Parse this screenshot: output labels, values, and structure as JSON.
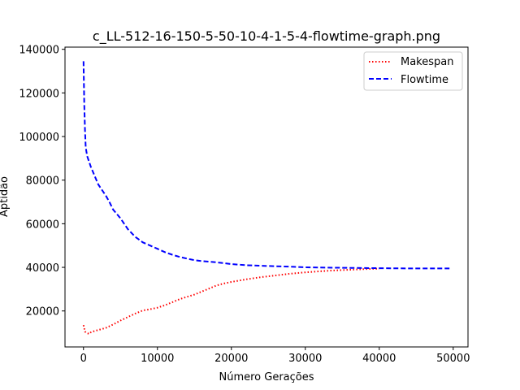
{
  "chart_data": {
    "type": "line",
    "title": "c_LL-512-16-150-5-50-10-4-1-5-4-flowtime-graph.png",
    "xlabel": "Número Gerações",
    "ylabel": "Aptidão",
    "xlim": [
      -2500,
      52000
    ],
    "ylim": [
      3500,
      141000
    ],
    "x_ticks": [
      0,
      10000,
      20000,
      30000,
      40000,
      50000
    ],
    "y_ticks": [
      20000,
      40000,
      60000,
      80000,
      100000,
      120000,
      140000
    ],
    "grid": false,
    "legend_position": "upper right",
    "series": [
      {
        "name": "Makespan",
        "color": "#ff0000",
        "style": "dotted",
        "x": [
          0,
          200,
          500,
          800,
          1000,
          1500,
          2000,
          3000,
          4000,
          5000,
          6000,
          7000,
          8000,
          9000,
          10000,
          11000,
          12000,
          13000,
          14000,
          15000,
          16000,
          17000,
          18000,
          19000,
          20000,
          22000,
          24000,
          26000,
          28000,
          30000,
          32000,
          34000,
          36000,
          38000,
          40000
        ],
        "y": [
          13500,
          10500,
          9800,
          9500,
          10200,
          10800,
          11300,
          12200,
          13800,
          15600,
          17200,
          18800,
          20200,
          20800,
          21500,
          22600,
          24000,
          25400,
          26500,
          27500,
          28900,
          30300,
          31700,
          32600,
          33300,
          34500,
          35500,
          36300,
          37100,
          37700,
          38200,
          38600,
          38900,
          39200,
          39400
        ]
      },
      {
        "name": "Flowtime",
        "color": "#0000ff",
        "style": "dashed",
        "x": [
          0,
          100,
          200,
          300,
          500,
          700,
          1000,
          1500,
          2000,
          2500,
          3000,
          3500,
          4000,
          5000,
          6000,
          7000,
          8000,
          9000,
          10000,
          11000,
          12000,
          13000,
          14000,
          15000,
          16000,
          18000,
          20000,
          22000,
          25000,
          28000,
          30000,
          35000,
          40000,
          45000,
          49500
        ],
        "y": [
          134500,
          115000,
          103000,
          95000,
          91000,
          89000,
          86000,
          82000,
          78000,
          75500,
          73000,
          70000,
          66500,
          62500,
          57500,
          54000,
          51500,
          50000,
          48500,
          47000,
          45800,
          44800,
          44000,
          43300,
          42900,
          42300,
          41500,
          41000,
          40600,
          40300,
          40000,
          39800,
          39600,
          39500,
          39500
        ]
      }
    ]
  }
}
